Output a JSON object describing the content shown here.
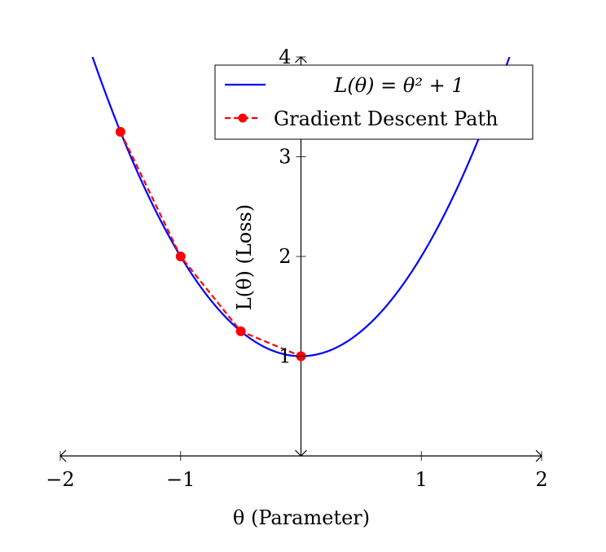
{
  "chart_data": {
    "type": "line",
    "xlabel": "θ (Parameter)",
    "ylabel": "L(θ) (Loss)",
    "xlim": [
      -2,
      2
    ],
    "ylim": [
      0,
      4
    ],
    "x_ticks": [
      -2,
      -1,
      1,
      2
    ],
    "y_ticks": [
      1,
      2,
      3,
      4
    ],
    "x_tick_labels": [
      "−2",
      "−1",
      "1",
      "2"
    ],
    "y_tick_labels": [
      "1",
      "2",
      "3",
      "4"
    ],
    "grid": false,
    "legend_position": "top-right",
    "series": [
      {
        "name": "L(θ) = θ² + 1",
        "style": "solid",
        "color": "#0000ff",
        "function": "theta^2 + 1"
      },
      {
        "name": "Gradient Descent Path",
        "style": "dashed",
        "color": "#ff0000",
        "markers": true,
        "x": [
          -1.5,
          -1.0,
          -0.5,
          0.0
        ],
        "y": [
          3.25,
          2.0,
          1.25,
          1.0
        ]
      }
    ]
  }
}
